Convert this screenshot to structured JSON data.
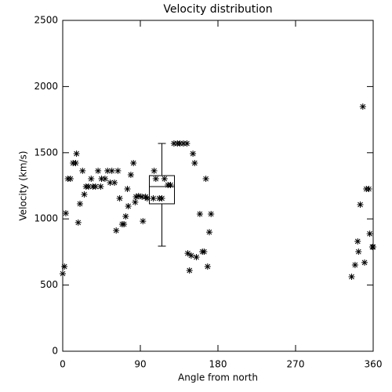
{
  "chart_data": {
    "type": "scatter",
    "title": "Velocity distribution",
    "x_label": "Angle from north",
    "y_label": "Velocity (km/s)",
    "xlim": [
      0,
      360
    ],
    "xticks": [
      0,
      90,
      180,
      270,
      360
    ],
    "ylim": [
      0,
      2500
    ],
    "yticks": [
      0,
      500,
      1000,
      1500,
      2000,
      2500
    ],
    "color": "#000000",
    "marker": "asterisk",
    "x": [
      0,
      2,
      3.6,
      6,
      9,
      12,
      15,
      16,
      18,
      20,
      23,
      25,
      27,
      30,
      33,
      35,
      38,
      41,
      44,
      45,
      49,
      52,
      55,
      57,
      60,
      62,
      64,
      66,
      69,
      71,
      73,
      75,
      76,
      79,
      82,
      84,
      85,
      88,
      92,
      93,
      96,
      98,
      105,
      106,
      108,
      112,
      115,
      118,
      122,
      125,
      129,
      133,
      136,
      140,
      144,
      145,
      147,
      149,
      151,
      153,
      155,
      159,
      162,
      164,
      166,
      168,
      170,
      172,
      335,
      339,
      342,
      343,
      345,
      348,
      350,
      352,
      355,
      356,
      359,
      360
    ],
    "values": [
      586,
      640,
      1043,
      1303,
      1303,
      1422,
      1422,
      1493,
      972,
      1114,
      1363,
      1185,
      1244,
      1244,
      1303,
      1244,
      1244,
      1363,
      1244,
      1303,
      1303,
      1363,
      1274,
      1363,
      1274,
      912,
      1363,
      1155,
      960,
      960,
      1019,
      1226,
      1096,
      1333,
      1422,
      1126,
      1167,
      1173,
      1167,
      983,
      1167,
      1155,
      1155,
      1363,
      1303,
      1155,
      1155,
      1303,
      1256,
      1256,
      1570,
      1570,
      1570,
      1570,
      1570,
      740,
      610,
      723,
      1493,
      1422,
      711,
      1037,
      752,
      752,
      1303,
      640,
      900,
      1037,
      563,
      652,
      830,
      752,
      1108,
      1848,
      670,
      1226,
      1226,
      888,
      788,
      788
    ],
    "box": {
      "position": 115,
      "whisker_low": 794,
      "q1": 1114,
      "median": 1244,
      "q3": 1327,
      "whisker_high": 1570
    }
  }
}
